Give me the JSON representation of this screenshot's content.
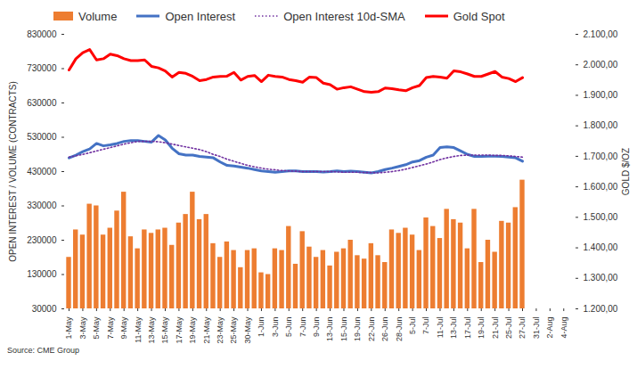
{
  "chart_data": {
    "type": "bar",
    "caption": "Source: CME Group",
    "legend": "top",
    "grid": false,
    "ylabel": "OPEN INTEREST / VOLUME (CONTRACTS)",
    "y2label": "GOLD $/OZ",
    "ylim": [
      30000,
      830000
    ],
    "yticks": [
      30000,
      130000,
      230000,
      330000,
      430000,
      530000,
      630000,
      730000,
      830000
    ],
    "y2lim": [
      1200,
      2100
    ],
    "y2ticks": [
      {
        "value": 1200,
        "label": "1.200,00"
      },
      {
        "value": 1300,
        "label": "1.300,00"
      },
      {
        "value": 1400,
        "label": "1.400,00"
      },
      {
        "value": 1500,
        "label": "1.500,00"
      },
      {
        "value": 1600,
        "label": "1.600,00"
      },
      {
        "value": 1700,
        "label": "1.700,00"
      },
      {
        "value": 1800,
        "label": "1.800,00"
      },
      {
        "value": 1900,
        "label": "1.900,00"
      },
      {
        "value": 2000,
        "label": "2.000,00"
      },
      {
        "value": 2100,
        "label": "2.100,00"
      }
    ],
    "categories": [
      "1-May",
      null,
      "3-May",
      null,
      "5-May",
      null,
      "7-May",
      null,
      "9-May",
      null,
      "11-May",
      null,
      "13-May",
      null,
      "15-May",
      null,
      "17-May",
      null,
      "19-May",
      null,
      "21-May",
      null,
      "23-May",
      null,
      "25-May",
      null,
      "30-May",
      null,
      "1-Jun",
      null,
      "3-Jun",
      null,
      "5-Jun",
      null,
      "7-Jun",
      null,
      "9-Jun",
      null,
      "13-Jun",
      null,
      "15-Jun",
      null,
      "19-Jun",
      null,
      "22-Jun",
      null,
      "26-Jun",
      null,
      "28-Jun",
      null,
      "5-Jul",
      null,
      "7-Jul",
      null,
      "11-Jul",
      null,
      "13-Jul",
      null,
      "17-Jul",
      null,
      "19-Jul",
      null,
      "21-Jul",
      null,
      "25-Jul",
      null,
      "27-Jul",
      null,
      "31-Jul",
      null,
      "2-Aug",
      null,
      "4-Aug",
      null
    ],
    "series": [
      {
        "name": "Volume",
        "type": "bar",
        "color": "#ED7D31",
        "values": [
          180000,
          260000,
          245000,
          335000,
          330000,
          245000,
          265000,
          315000,
          370000,
          240000,
          205000,
          260000,
          250000,
          260000,
          265000,
          215000,
          280000,
          305000,
          370000,
          290000,
          305000,
          220000,
          180000,
          225000,
          200000,
          150000,
          200000,
          205000,
          135000,
          130000,
          205000,
          200000,
          270000,
          160000,
          255000,
          210000,
          180000,
          200000,
          155000,
          195000,
          205000,
          230000,
          185000,
          175000,
          220000,
          185000,
          165000,
          260000,
          250000,
          265000,
          245000,
          200000,
          295000,
          270000,
          235000,
          320000,
          290000,
          280000,
          205000,
          320000,
          165000,
          230000,
          195000,
          285000,
          280000,
          325000,
          405000,
          null,
          null,
          null,
          null,
          null,
          null,
          null
        ]
      },
      {
        "name": "Open Interest",
        "type": "line",
        "color": "#4472C4",
        "line_style": "solid",
        "values": [
          470000,
          478000,
          488000,
          496000,
          512000,
          505000,
          508000,
          512000,
          518000,
          520000,
          520000,
          518000,
          516000,
          535000,
          522000,
          498000,
          482000,
          478000,
          478000,
          474000,
          472000,
          470000,
          458000,
          448000,
          446000,
          443000,
          440000,
          436000,
          432000,
          430000,
          428000,
          430000,
          432000,
          432000,
          430000,
          430000,
          430000,
          429000,
          430000,
          432000,
          430000,
          431000,
          430000,
          428000,
          426000,
          430000,
          436000,
          440000,
          445000,
          450000,
          458000,
          462000,
          472000,
          478000,
          500000,
          502000,
          500000,
          490000,
          480000,
          474000,
          474000,
          475000,
          475000,
          474000,
          472000,
          470000,
          460000,
          null,
          null,
          null,
          null,
          null,
          null,
          null
        ]
      },
      {
        "name": "Open Interest 10d-SMA",
        "type": "line",
        "color": "#7030A0",
        "line_style": "dotted",
        "values": [
          472000,
          476000,
          480000,
          485000,
          490000,
          495000,
          500000,
          505000,
          510000,
          514000,
          518000,
          518000,
          518000,
          517000,
          514000,
          510000,
          506000,
          502000,
          498000,
          494000,
          488000,
          480000,
          474000,
          466000,
          460000,
          454000,
          448000,
          444000,
          440000,
          437000,
          435000,
          433000,
          432000,
          431000,
          430000,
          430000,
          430000,
          430000,
          430000,
          429000,
          428000,
          428000,
          428000,
          427000,
          427000,
          426000,
          428000,
          430000,
          433000,
          437000,
          442000,
          447000,
          452000,
          458000,
          465000,
          470000,
          474000,
          477000,
          478000,
          478000,
          478000,
          478000,
          477000,
          477000,
          476000,
          474000,
          472000,
          null,
          null,
          null,
          null,
          null,
          null,
          null
        ]
      },
      {
        "name": "Gold Spot",
        "type": "line",
        "color": "#FF0000",
        "line_style": "solid",
        "axis": "y2",
        "values": [
          1983,
          2020,
          2040,
          2050,
          2016,
          2020,
          2035,
          2030,
          2020,
          2014,
          2014,
          2016,
          1995,
          1990,
          1980,
          1960,
          1975,
          1972,
          1962,
          1948,
          1952,
          1960,
          1962,
          1963,
          1975,
          1950,
          1962,
          1965,
          1945,
          1966,
          1962,
          1960,
          1952,
          1948,
          1943,
          1960,
          1958,
          1940,
          1935,
          1920,
          1925,
          1928,
          1920,
          1912,
          1910,
          1912,
          1924,
          1922,
          1918,
          1915,
          1925,
          1932,
          1958,
          1962,
          1960,
          1956,
          1980,
          1977,
          1970,
          1962,
          1962,
          1970,
          1978,
          1960,
          1955,
          1945,
          1958,
          null,
          null,
          null,
          null,
          null,
          null,
          null
        ]
      }
    ]
  }
}
